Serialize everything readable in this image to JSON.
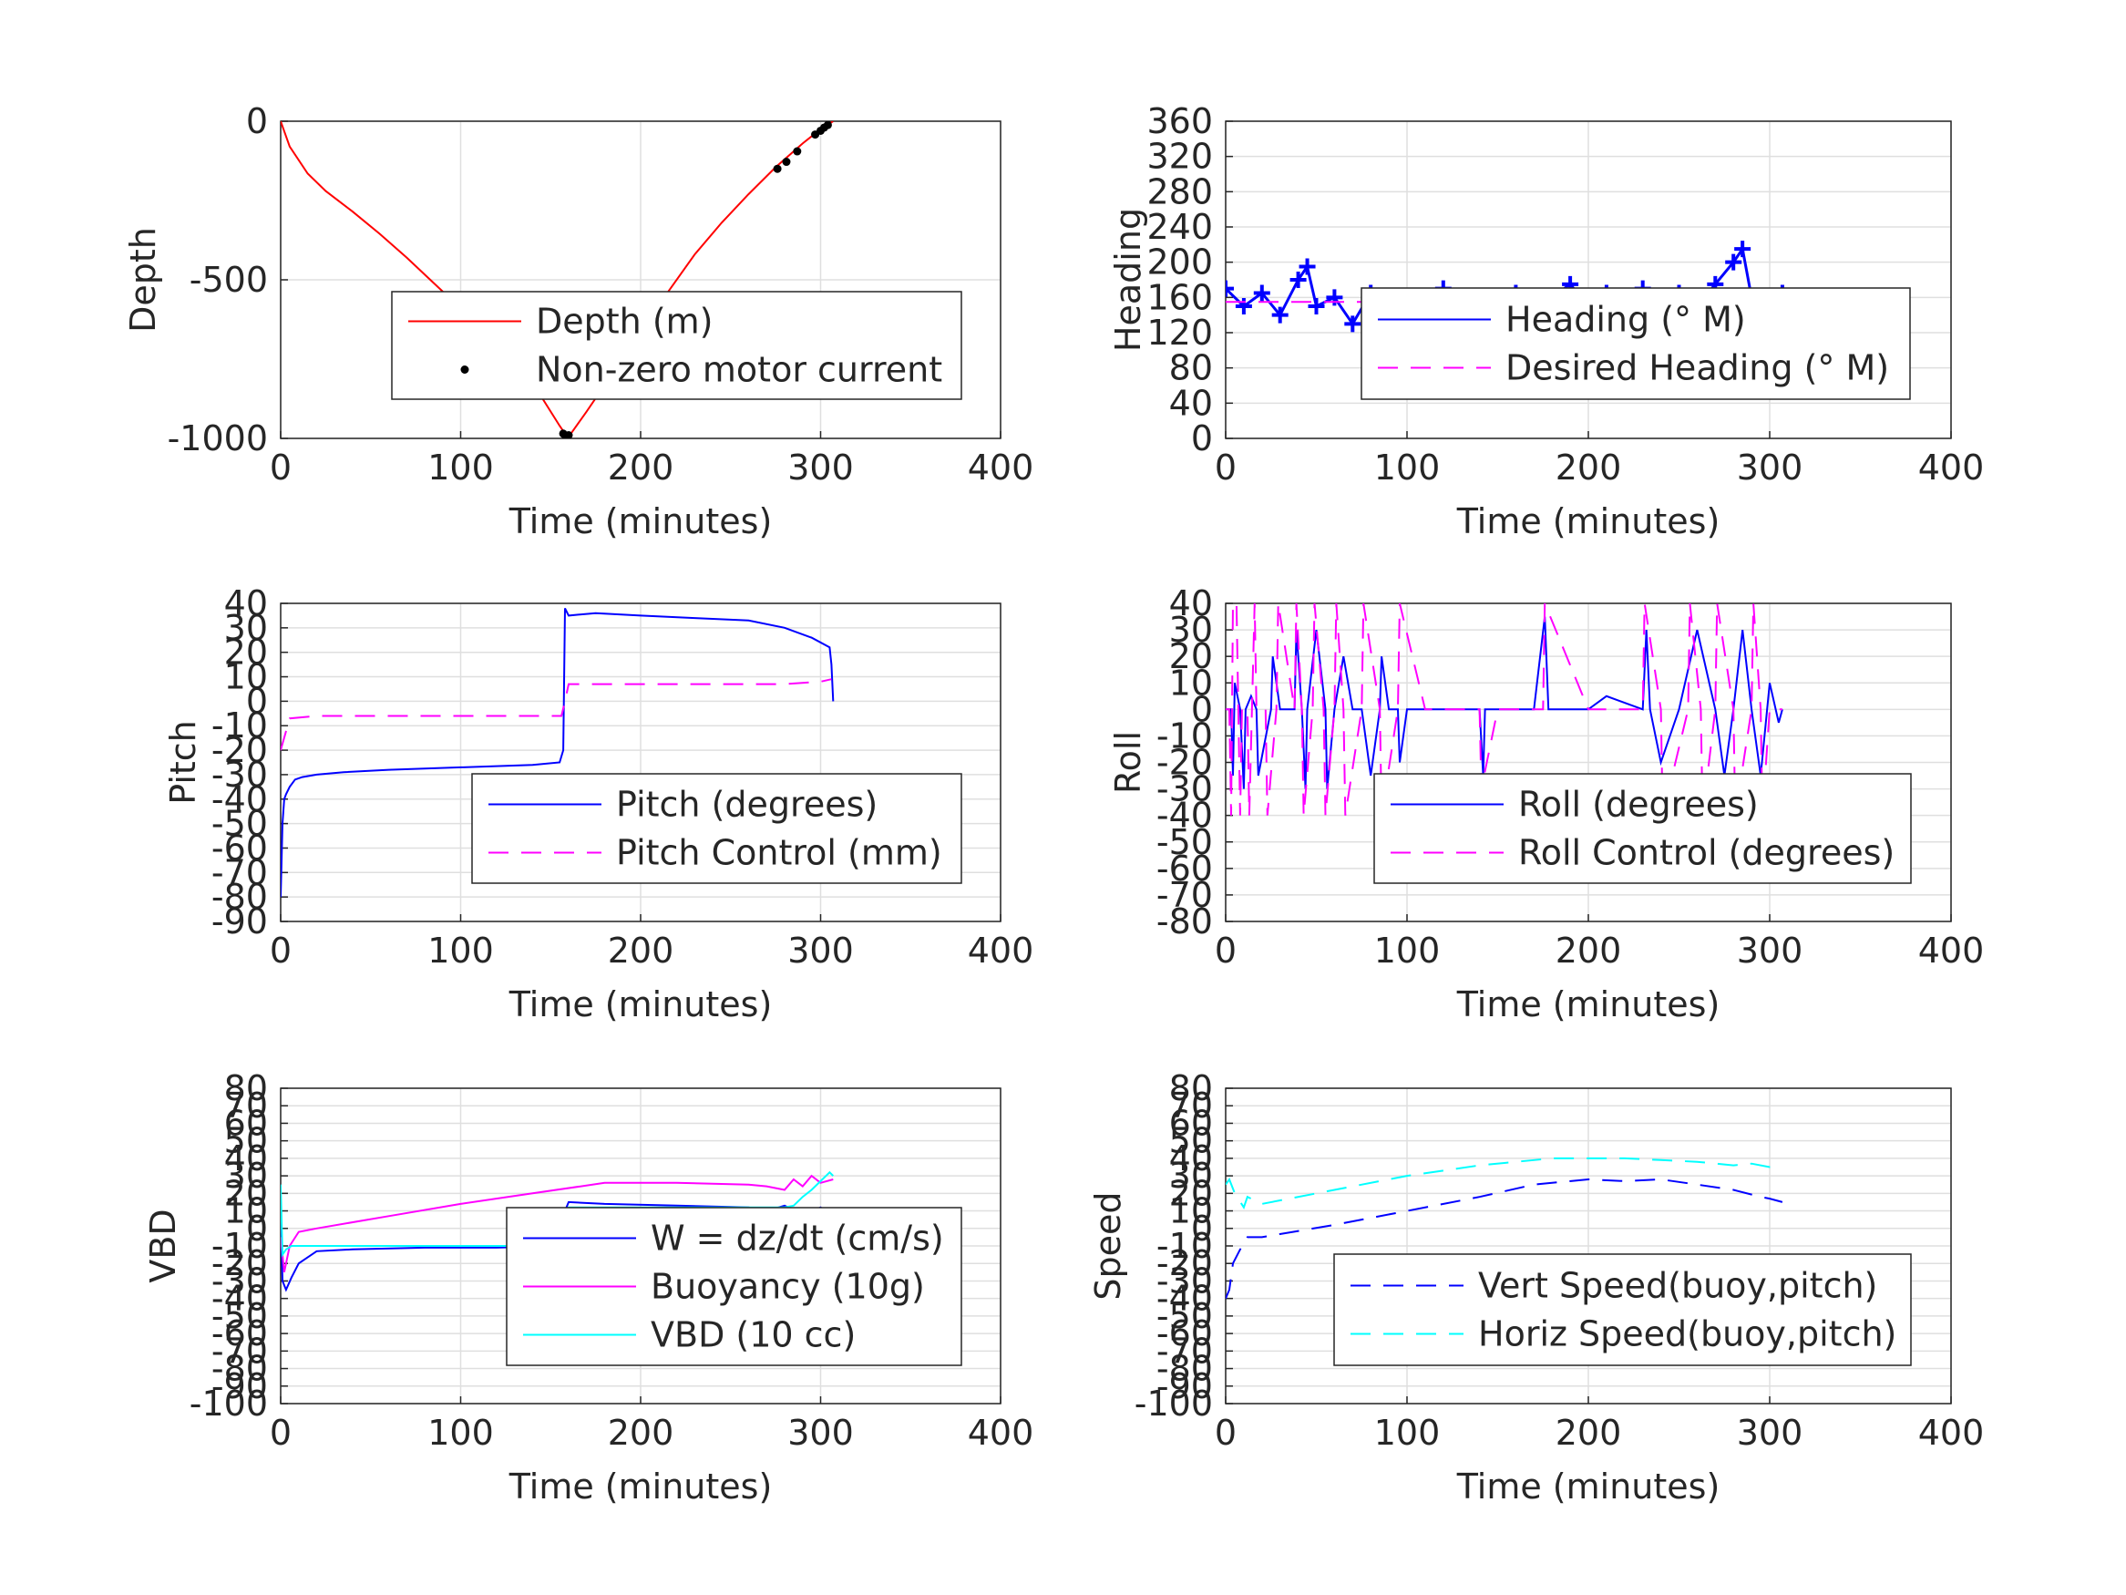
{
  "chart_data": [
    {
      "type": "line",
      "id": "depth",
      "ylabel": "Depth",
      "xlabel": "Time (minutes)",
      "xlim": [
        0,
        400
      ],
      "ylim": [
        -1000,
        0
      ],
      "xticks": [
        "0",
        "100",
        "200",
        "300",
        "400"
      ],
      "yticks": [
        "0",
        "-500",
        "-1000"
      ],
      "ytick_values": [
        0,
        -500,
        -1000
      ],
      "grid": true,
      "legend_position": "center-right",
      "series": [
        {
          "name": "Depth (m)",
          "color": "#ff0000",
          "style": "solid",
          "x": [
            0,
            5,
            15,
            25,
            40,
            55,
            70,
            85,
            100,
            115,
            130,
            145,
            155,
            158,
            160,
            170,
            185,
            200,
            215,
            230,
            245,
            260,
            275,
            290,
            300,
            307
          ],
          "y": [
            0,
            -80,
            -165,
            -220,
            -285,
            -355,
            -430,
            -510,
            -590,
            -675,
            -770,
            -870,
            -960,
            -985,
            -995,
            -915,
            -790,
            -660,
            -540,
            -420,
            -320,
            -230,
            -145,
            -70,
            -25,
            0
          ]
        },
        {
          "name": "Non-zero motor current",
          "color": "#000000",
          "style": "markers",
          "x": [
            157,
            158,
            159,
            160,
            276,
            281,
            287,
            297,
            300,
            302,
            304
          ],
          "y": [
            -985,
            -990,
            -992,
            -990,
            -150,
            -128,
            -95,
            -42,
            -30,
            -20,
            -12
          ]
        }
      ]
    },
    {
      "type": "line",
      "id": "heading",
      "ylabel": "Heading",
      "xlabel": "Time (minutes)",
      "xlim": [
        0,
        400
      ],
      "ylim": [
        0,
        360
      ],
      "xticks": [
        "0",
        "100",
        "200",
        "300",
        "400"
      ],
      "yticks": [
        "360",
        "320",
        "280",
        "240",
        "200",
        "160",
        "120",
        "80",
        "40",
        "0"
      ],
      "ytick_values": [
        360,
        320,
        280,
        240,
        200,
        160,
        120,
        80,
        40,
        0
      ],
      "grid": true,
      "legend_position": "center-right",
      "series": [
        {
          "name": "Heading (° M)",
          "color": "#0000ff",
          "style": "solid-plus",
          "x": [
            0,
            10,
            20,
            30,
            40,
            45,
            50,
            60,
            70,
            80,
            90,
            100,
            110,
            120,
            130,
            140,
            150,
            160,
            170,
            180,
            190,
            200,
            210,
            220,
            230,
            240,
            245,
            250,
            260,
            270,
            280,
            285,
            290,
            300,
            307
          ],
          "y": [
            170,
            150,
            165,
            140,
            180,
            195,
            150,
            160,
            130,
            165,
            150,
            160,
            145,
            170,
            155,
            160,
            145,
            165,
            150,
            160,
            175,
            150,
            165,
            145,
            170,
            150,
            120,
            165,
            150,
            175,
            200,
            215,
            160,
            150,
            165
          ]
        },
        {
          "name": "Desired Heading (° M)",
          "color": "#ff00ff",
          "style": "dashed",
          "x": [
            0,
            307
          ],
          "y": [
            155,
            155
          ]
        }
      ]
    },
    {
      "type": "line",
      "id": "pitch",
      "ylabel": "Pitch",
      "xlabel": "Time (minutes)",
      "xlim": [
        0,
        400
      ],
      "ylim": [
        -90,
        40
      ],
      "xticks": [
        "0",
        "100",
        "200",
        "300",
        "400"
      ],
      "yticks": [
        "40",
        "30",
        "20",
        "10",
        "0",
        "-10",
        "-20",
        "-30",
        "-40",
        "-50",
        "-60",
        "-70",
        "-80",
        "-90"
      ],
      "ytick_values": [
        40,
        30,
        20,
        10,
        0,
        -10,
        -20,
        -30,
        -40,
        -50,
        -60,
        -70,
        -80,
        -90
      ],
      "grid": true,
      "legend_position": "bottom-right",
      "series": [
        {
          "name": "Pitch (degrees)",
          "color": "#0000ff",
          "style": "solid",
          "x": [
            0,
            1,
            2,
            3,
            5,
            8,
            12,
            20,
            35,
            60,
            100,
            140,
            155,
            157,
            158,
            160,
            175,
            200,
            230,
            260,
            280,
            295,
            305,
            306,
            307
          ],
          "y": [
            -80,
            -50,
            -40,
            -38,
            -35,
            -32,
            -31,
            -30,
            -29,
            -28,
            -27,
            -26,
            -25,
            -20,
            38,
            35,
            36,
            35,
            34,
            33,
            30,
            26,
            22,
            15,
            0
          ]
        },
        {
          "name": "Pitch Control (mm)",
          "color": "#ff00ff",
          "style": "dashed",
          "x": [
            0,
            5,
            20,
            60,
            100,
            140,
            156,
            158,
            160,
            200,
            250,
            280,
            300,
            306
          ],
          "y": [
            -20,
            -7,
            -6,
            -6,
            -6,
            -6,
            -6,
            0,
            7,
            7,
            7,
            7,
            8,
            9
          ]
        }
      ]
    },
    {
      "type": "line",
      "id": "roll",
      "ylabel": "Roll",
      "xlabel": "Time (minutes)",
      "xlim": [
        0,
        400
      ],
      "ylim": [
        -80,
        40
      ],
      "xticks": [
        "0",
        "100",
        "200",
        "300",
        "400"
      ],
      "yticks": [
        "40",
        "30",
        "20",
        "10",
        "0",
        "-10",
        "-20",
        "-30",
        "-40",
        "-50",
        "-60",
        "-70",
        "-80"
      ],
      "ytick_values": [
        40,
        30,
        20,
        10,
        0,
        -10,
        -20,
        -30,
        -40,
        -50,
        -60,
        -70,
        -80
      ],
      "grid": true,
      "legend_position": "bottom-right",
      "series": [
        {
          "name": "Roll (degrees)",
          "color": "#0000ff",
          "style": "solid",
          "x": [
            0,
            3,
            4,
            5,
            8,
            10,
            11,
            14,
            17,
            18,
            25,
            26,
            30,
            38,
            39,
            42,
            44,
            45,
            50,
            55,
            56,
            60,
            65,
            70,
            75,
            80,
            85,
            86,
            90,
            95,
            96,
            100,
            120,
            140,
            142,
            143,
            150,
            170,
            176,
            178,
            180,
            200,
            210,
            230,
            232,
            234,
            240,
            250,
            260,
            270,
            275,
            280,
            285,
            290,
            295,
            300,
            305,
            307
          ],
          "y": [
            0,
            0,
            -25,
            10,
            0,
            -30,
            0,
            5,
            0,
            -25,
            0,
            20,
            0,
            0,
            30,
            0,
            -30,
            0,
            30,
            0,
            -30,
            0,
            20,
            0,
            0,
            -25,
            0,
            20,
            0,
            0,
            -20,
            0,
            0,
            0,
            -25,
            0,
            0,
            0,
            35,
            0,
            0,
            0,
            5,
            0,
            30,
            0,
            -20,
            0,
            30,
            0,
            -25,
            0,
            30,
            0,
            -25,
            10,
            -5,
            0
          ]
        },
        {
          "name": "Roll Control (degrees)",
          "color": "#ff00ff",
          "style": "dashed",
          "x": [
            0,
            2,
            3,
            4,
            6,
            8,
            9,
            12,
            13,
            16,
            17,
            22,
            23,
            28,
            29,
            38,
            39,
            42,
            43,
            48,
            49,
            54,
            55,
            60,
            61,
            65,
            66,
            75,
            76,
            85,
            86,
            95,
            96,
            110,
            130,
            140,
            141,
            150,
            170,
            175,
            176,
            200,
            230,
            231,
            240,
            241,
            255,
            256,
            262,
            263,
            270,
            271,
            280,
            281,
            290,
            291,
            295,
            296,
            300,
            307
          ],
          "y": [
            0,
            0,
            -40,
            40,
            40,
            -40,
            0,
            0,
            -40,
            40,
            0,
            0,
            -40,
            0,
            40,
            0,
            40,
            0,
            -40,
            0,
            40,
            0,
            -40,
            0,
            40,
            0,
            -40,
            0,
            40,
            0,
            -40,
            0,
            40,
            0,
            0,
            0,
            -30,
            0,
            0,
            0,
            40,
            0,
            0,
            40,
            0,
            -40,
            0,
            40,
            0,
            -40,
            0,
            40,
            0,
            -40,
            0,
            40,
            0,
            -40,
            0,
            0
          ]
        }
      ]
    },
    {
      "type": "line",
      "id": "vbd",
      "ylabel": "VBD",
      "xlabel": "Time (minutes)",
      "xlim": [
        0,
        400
      ],
      "ylim": [
        -100,
        80
      ],
      "xticks": [
        "0",
        "100",
        "200",
        "300",
        "400"
      ],
      "yticks": [
        "80",
        "70",
        "60",
        "50",
        "40",
        "30",
        "20",
        "10",
        "0",
        "-10",
        "-20",
        "-30",
        "-40",
        "-50",
        "-60",
        "-70",
        "-80",
        "-90",
        "-100"
      ],
      "ytick_values": [
        80,
        70,
        60,
        50,
        40,
        30,
        20,
        10,
        0,
        -10,
        -20,
        -30,
        -40,
        -50,
        -60,
        -70,
        -80,
        -90,
        -100
      ],
      "grid": true,
      "legend_position": "center-right",
      "series": [
        {
          "name": "W = dz/dt (cm/s)",
          "color": "#0000ff",
          "style": "solid",
          "x": [
            0,
            1,
            3,
            6,
            10,
            20,
            40,
            80,
            120,
            155,
            157,
            158,
            160,
            180,
            220,
            260,
            270,
            280,
            290,
            300,
            307
          ],
          "y": [
            10,
            -30,
            -35,
            -28,
            -20,
            -13,
            -12,
            -11,
            -11,
            -10,
            -8,
            10,
            15,
            14,
            13,
            12,
            10,
            13,
            8,
            12,
            7
          ]
        },
        {
          "name": "Buoyancy (10g)",
          "color": "#ff00ff",
          "style": "solid",
          "x": [
            0,
            2,
            5,
            10,
            20,
            60,
            100,
            140,
            180,
            220,
            260,
            270,
            280,
            285,
            290,
            295,
            300,
            307
          ],
          "y": [
            -5,
            -25,
            -10,
            -2,
            0,
            7,
            14,
            20,
            26,
            26,
            25,
            24,
            22,
            28,
            24,
            30,
            26,
            28
          ]
        },
        {
          "name": "VBD (10 cc)",
          "color": "#00ffff",
          "style": "solid",
          "x": [
            0,
            1,
            3,
            6,
            20,
            60,
            100,
            155,
            157,
            160,
            200,
            260,
            280,
            285,
            290,
            295,
            300,
            305,
            307
          ],
          "y": [
            25,
            -15,
            -12,
            -10,
            -10,
            -10,
            -10,
            -10,
            -5,
            12,
            12,
            12,
            12,
            13,
            18,
            22,
            27,
            32,
            30
          ]
        }
      ]
    },
    {
      "type": "line",
      "id": "speed",
      "ylabel": "Speed",
      "xlabel": "Time (minutes)",
      "xlim": [
        0,
        400
      ],
      "ylim": [
        -100,
        80
      ],
      "xticks": [
        "0",
        "100",
        "200",
        "300",
        "400"
      ],
      "yticks": [
        "80",
        "70",
        "60",
        "50",
        "40",
        "30",
        "20",
        "10",
        "0",
        "-10",
        "-20",
        "-30",
        "-40",
        "-50",
        "-60",
        "-70",
        "-80",
        "-90",
        "-100"
      ],
      "ytick_values": [
        80,
        70,
        60,
        50,
        40,
        30,
        20,
        10,
        0,
        -10,
        -20,
        -30,
        -40,
        -50,
        -60,
        -70,
        -80,
        -90,
        -100
      ],
      "grid": true,
      "legend_position": "bottom-right",
      "series": [
        {
          "name": "Vert Speed(buoy,pitch)",
          "color": "#0000ff",
          "style": "dashed",
          "x": [
            0,
            2,
            4,
            8,
            10,
            12,
            20,
            60,
            100,
            140,
            170,
            200,
            220,
            240,
            260,
            280,
            295,
            300,
            307
          ],
          "y": [
            -40,
            -35,
            -20,
            -12,
            -10,
            -5,
            -5,
            2,
            10,
            18,
            25,
            28,
            27,
            28,
            25,
            22,
            18,
            17,
            15
          ]
        },
        {
          "name": "Horiz Speed(buoy,pitch)",
          "color": "#00ffff",
          "style": "dashed",
          "x": [
            0,
            2,
            5,
            10,
            12,
            20,
            60,
            100,
            140,
            180,
            200,
            220,
            240,
            260,
            280,
            290,
            300,
            307
          ],
          "y": [
            25,
            28,
            20,
            12,
            18,
            14,
            22,
            30,
            36,
            40,
            40,
            40,
            39,
            38,
            36,
            37,
            35,
            35
          ]
        }
      ]
    }
  ]
}
